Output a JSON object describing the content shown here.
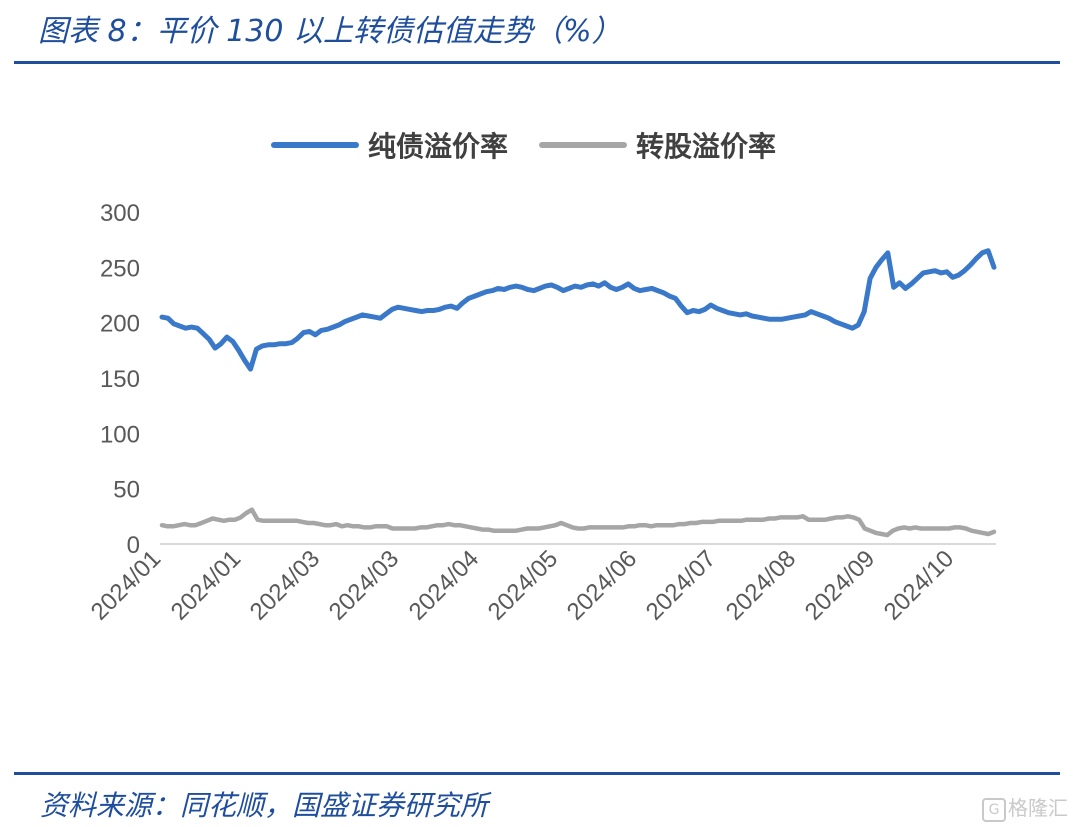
{
  "header": {
    "title": "图表 8：平价 130 以上转债估值走势（%）"
  },
  "footer": {
    "source": "资料来源：同花顺，国盛证券研究所",
    "watermark": "格隆汇",
    "watermark_glyph": "G"
  },
  "chart_data": {
    "type": "line",
    "title": "图表 8：平价 130 以上转债估值走势（%）",
    "xlabel": "",
    "ylabel": "",
    "ylim": [
      0,
      300
    ],
    "yticks": [
      0,
      50,
      100,
      150,
      200,
      250,
      300
    ],
    "xtick_labels": [
      "2024/01",
      "2024/01",
      "2024/03",
      "2024/03",
      "2024/04",
      "2024/05",
      "2024/06",
      "2024/07",
      "2024/08",
      "2024/09",
      "2024/10"
    ],
    "grid": false,
    "legend_position": "top-center",
    "series": [
      {
        "name": "纯债溢价率",
        "color": "#3a78c9",
        "values": [
          205,
          204,
          199,
          197,
          195,
          196,
          195,
          190,
          185,
          177,
          181,
          187,
          183,
          175,
          166,
          158,
          176,
          179,
          180,
          180,
          181,
          181,
          182,
          186,
          191,
          192,
          189,
          193,
          194,
          196,
          198,
          201,
          203,
          205,
          207,
          206,
          205,
          204,
          208,
          212,
          214,
          213,
          212,
          211,
          210,
          211,
          211,
          212,
          214,
          215,
          213,
          218,
          222,
          224,
          226,
          228,
          229,
          231,
          230,
          232,
          233,
          232,
          230,
          229,
          231,
          233,
          234,
          232,
          229,
          231,
          233,
          232,
          234,
          235,
          233,
          236,
          232,
          230,
          232,
          235,
          231,
          229,
          230,
          231,
          229,
          227,
          224,
          222,
          215,
          209,
          211,
          210,
          212,
          216,
          213,
          211,
          209,
          208,
          207,
          208,
          206,
          205,
          204,
          203,
          203,
          203,
          204,
          205,
          206,
          207,
          210,
          208,
          206,
          204,
          201,
          199,
          197,
          195,
          198,
          210,
          240,
          250,
          257,
          263,
          232,
          236,
          231,
          235,
          240,
          245,
          246,
          247,
          245,
          246,
          241,
          243,
          247,
          252,
          258,
          263,
          265,
          250
        ]
      },
      {
        "name": "转股溢价率",
        "color": "#a6a6a6",
        "values": [
          17,
          16,
          16,
          17,
          18,
          17,
          17,
          19,
          21,
          23,
          22,
          21,
          22,
          22,
          24,
          28,
          31,
          22,
          21,
          21,
          21,
          21,
          21,
          21,
          21,
          20,
          19,
          19,
          18,
          17,
          17,
          18,
          16,
          17,
          16,
          16,
          15,
          15,
          16,
          16,
          16,
          14,
          14,
          14,
          14,
          14,
          15,
          15,
          16,
          17,
          17,
          18,
          17,
          17,
          16,
          15,
          14,
          13,
          13,
          12,
          12,
          12,
          12,
          12,
          13,
          14,
          14,
          14,
          15,
          16,
          17,
          19,
          17,
          15,
          14,
          14,
          15,
          15,
          15,
          15,
          15,
          15,
          15,
          16,
          16,
          17,
          17,
          16,
          17,
          17,
          17,
          17,
          18,
          18,
          19,
          19,
          20,
          20,
          20,
          21,
          21,
          21,
          21,
          21,
          22,
          22,
          22,
          22,
          23,
          23,
          24,
          24,
          24,
          24,
          25,
          22,
          22,
          22,
          22,
          23,
          24,
          24,
          25,
          24,
          22,
          14,
          12,
          10,
          9,
          8,
          12,
          14,
          15,
          14,
          15,
          14,
          14,
          14,
          14,
          14,
          14,
          15,
          15,
          14,
          12,
          11,
          10,
          9,
          11
        ]
      }
    ]
  }
}
